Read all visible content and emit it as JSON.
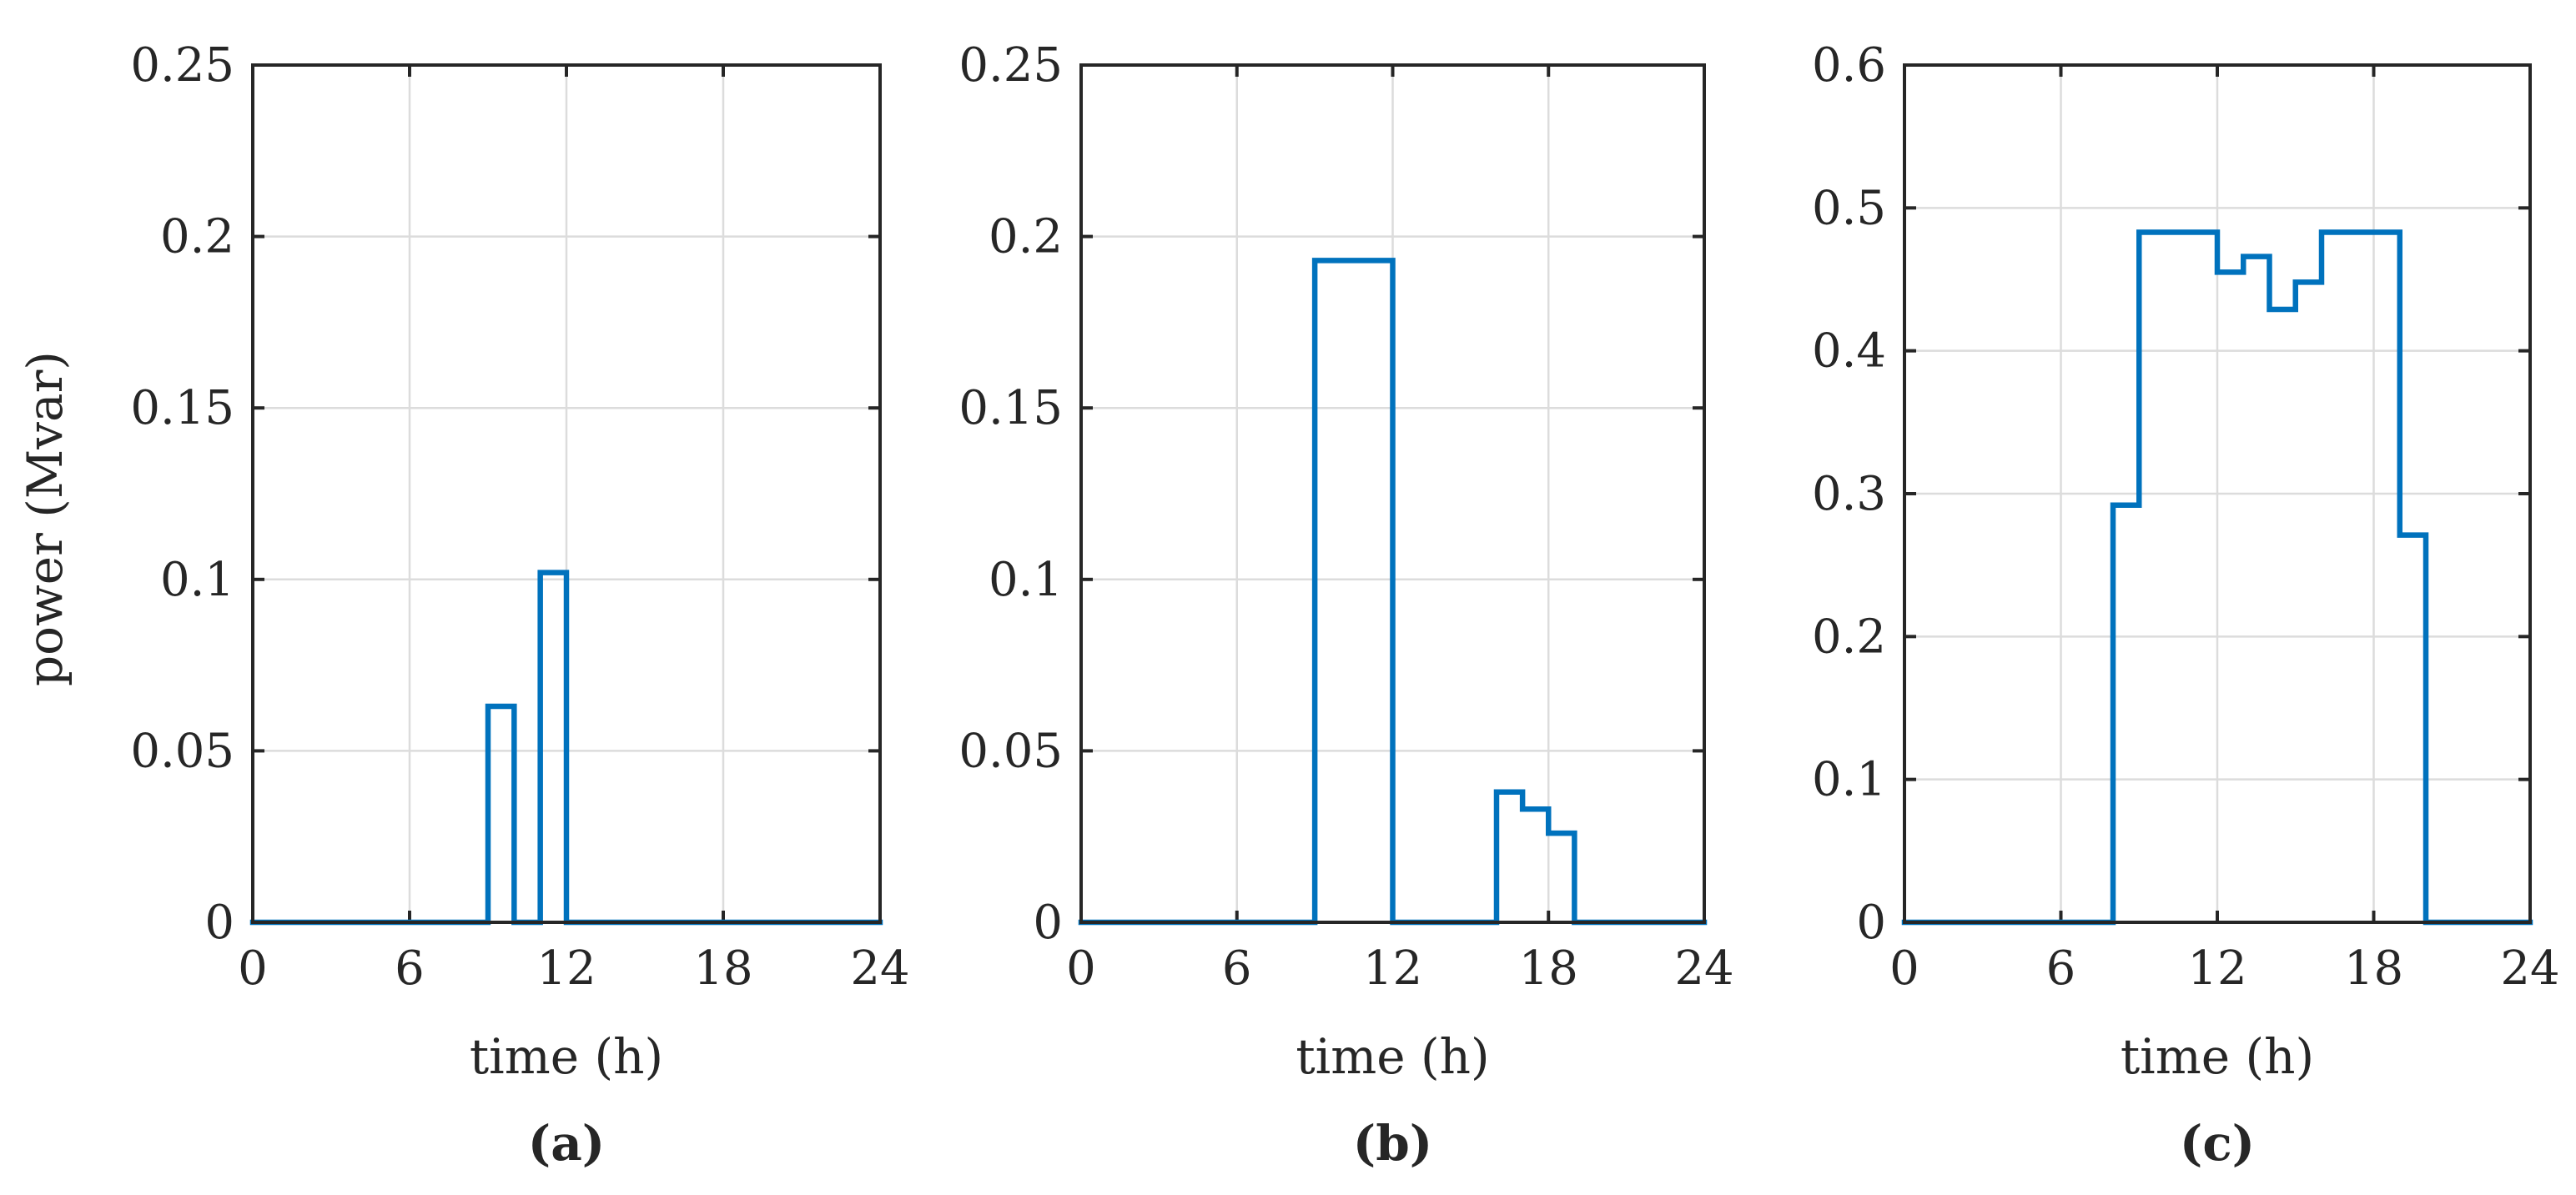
{
  "chart_data": [
    {
      "type": "line",
      "step": "post",
      "panel_label": "(a)",
      "xlabel": "time (h)",
      "ylabel": "power (Mvar)",
      "xlim": [
        0,
        24
      ],
      "ylim": [
        0,
        0.25
      ],
      "xticks": [
        0,
        6,
        12,
        18,
        24
      ],
      "yticks": [
        0,
        0.05,
        0.1,
        0.15,
        0.2,
        0.25
      ],
      "xtick_labels": [
        "0",
        "6",
        "12",
        "18",
        "24"
      ],
      "ytick_labels": [
        "0",
        "0.05",
        "0.1",
        "0.15",
        "0.2",
        "0.25"
      ],
      "grid": true,
      "series": [
        {
          "color": "#0072bd",
          "x": [
            0,
            1,
            2,
            3,
            4,
            5,
            6,
            7,
            8,
            9,
            10,
            11,
            12,
            13,
            14,
            15,
            16,
            17,
            18,
            19,
            20,
            21,
            22,
            23,
            24
          ],
          "y": [
            0,
            0,
            0,
            0,
            0,
            0,
            0,
            0,
            0,
            0.063,
            0,
            0.102,
            0,
            0,
            0,
            0,
            0,
            0,
            0,
            0,
            0,
            0,
            0,
            0,
            0
          ]
        }
      ]
    },
    {
      "type": "line",
      "step": "post",
      "panel_label": "(b)",
      "xlabel": "time (h)",
      "ylabel": "",
      "xlim": [
        0,
        24
      ],
      "ylim": [
        0,
        0.25
      ],
      "xticks": [
        0,
        6,
        12,
        18,
        24
      ],
      "yticks": [
        0,
        0.05,
        0.1,
        0.15,
        0.2,
        0.25
      ],
      "xtick_labels": [
        "0",
        "6",
        "12",
        "18",
        "24"
      ],
      "ytick_labels": [
        "0",
        "0.05",
        "0.1",
        "0.15",
        "0.2",
        "0.25"
      ],
      "grid": true,
      "series": [
        {
          "color": "#0072bd",
          "x": [
            0,
            1,
            2,
            3,
            4,
            5,
            6,
            7,
            8,
            9,
            10,
            11,
            12,
            13,
            14,
            15,
            16,
            17,
            18,
            19,
            20,
            21,
            22,
            23,
            24
          ],
          "y": [
            0,
            0,
            0,
            0,
            0,
            0,
            0,
            0,
            0,
            0.193,
            0.193,
            0.193,
            0,
            0,
            0,
            0,
            0.038,
            0.033,
            0.026,
            0,
            0,
            0,
            0,
            0,
            0
          ]
        }
      ]
    },
    {
      "type": "line",
      "step": "post",
      "panel_label": "(c)",
      "xlabel": "time (h)",
      "ylabel": "",
      "xlim": [
        0,
        24
      ],
      "ylim": [
        0,
        0.6
      ],
      "xticks": [
        0,
        6,
        12,
        18,
        24
      ],
      "yticks": [
        0,
        0.1,
        0.2,
        0.3,
        0.4,
        0.5,
        0.6
      ],
      "xtick_labels": [
        "0",
        "6",
        "12",
        "18",
        "24"
      ],
      "ytick_labels": [
        "0",
        "0.1",
        "0.2",
        "0.3",
        "0.4",
        "0.5",
        "0.6"
      ],
      "grid": true,
      "series": [
        {
          "color": "#0072bd",
          "x": [
            0,
            1,
            2,
            3,
            4,
            5,
            6,
            7,
            8,
            9,
            10,
            11,
            12,
            13,
            14,
            15,
            16,
            17,
            18,
            19,
            20,
            21,
            22,
            23,
            24
          ],
          "y": [
            0,
            0,
            0,
            0,
            0,
            0,
            0,
            0,
            0.292,
            0.483,
            0.483,
            0.483,
            0.455,
            0.466,
            0.429,
            0.448,
            0.483,
            0.483,
            0.483,
            0.271,
            0,
            0,
            0,
            0,
            0
          ]
        }
      ]
    }
  ]
}
